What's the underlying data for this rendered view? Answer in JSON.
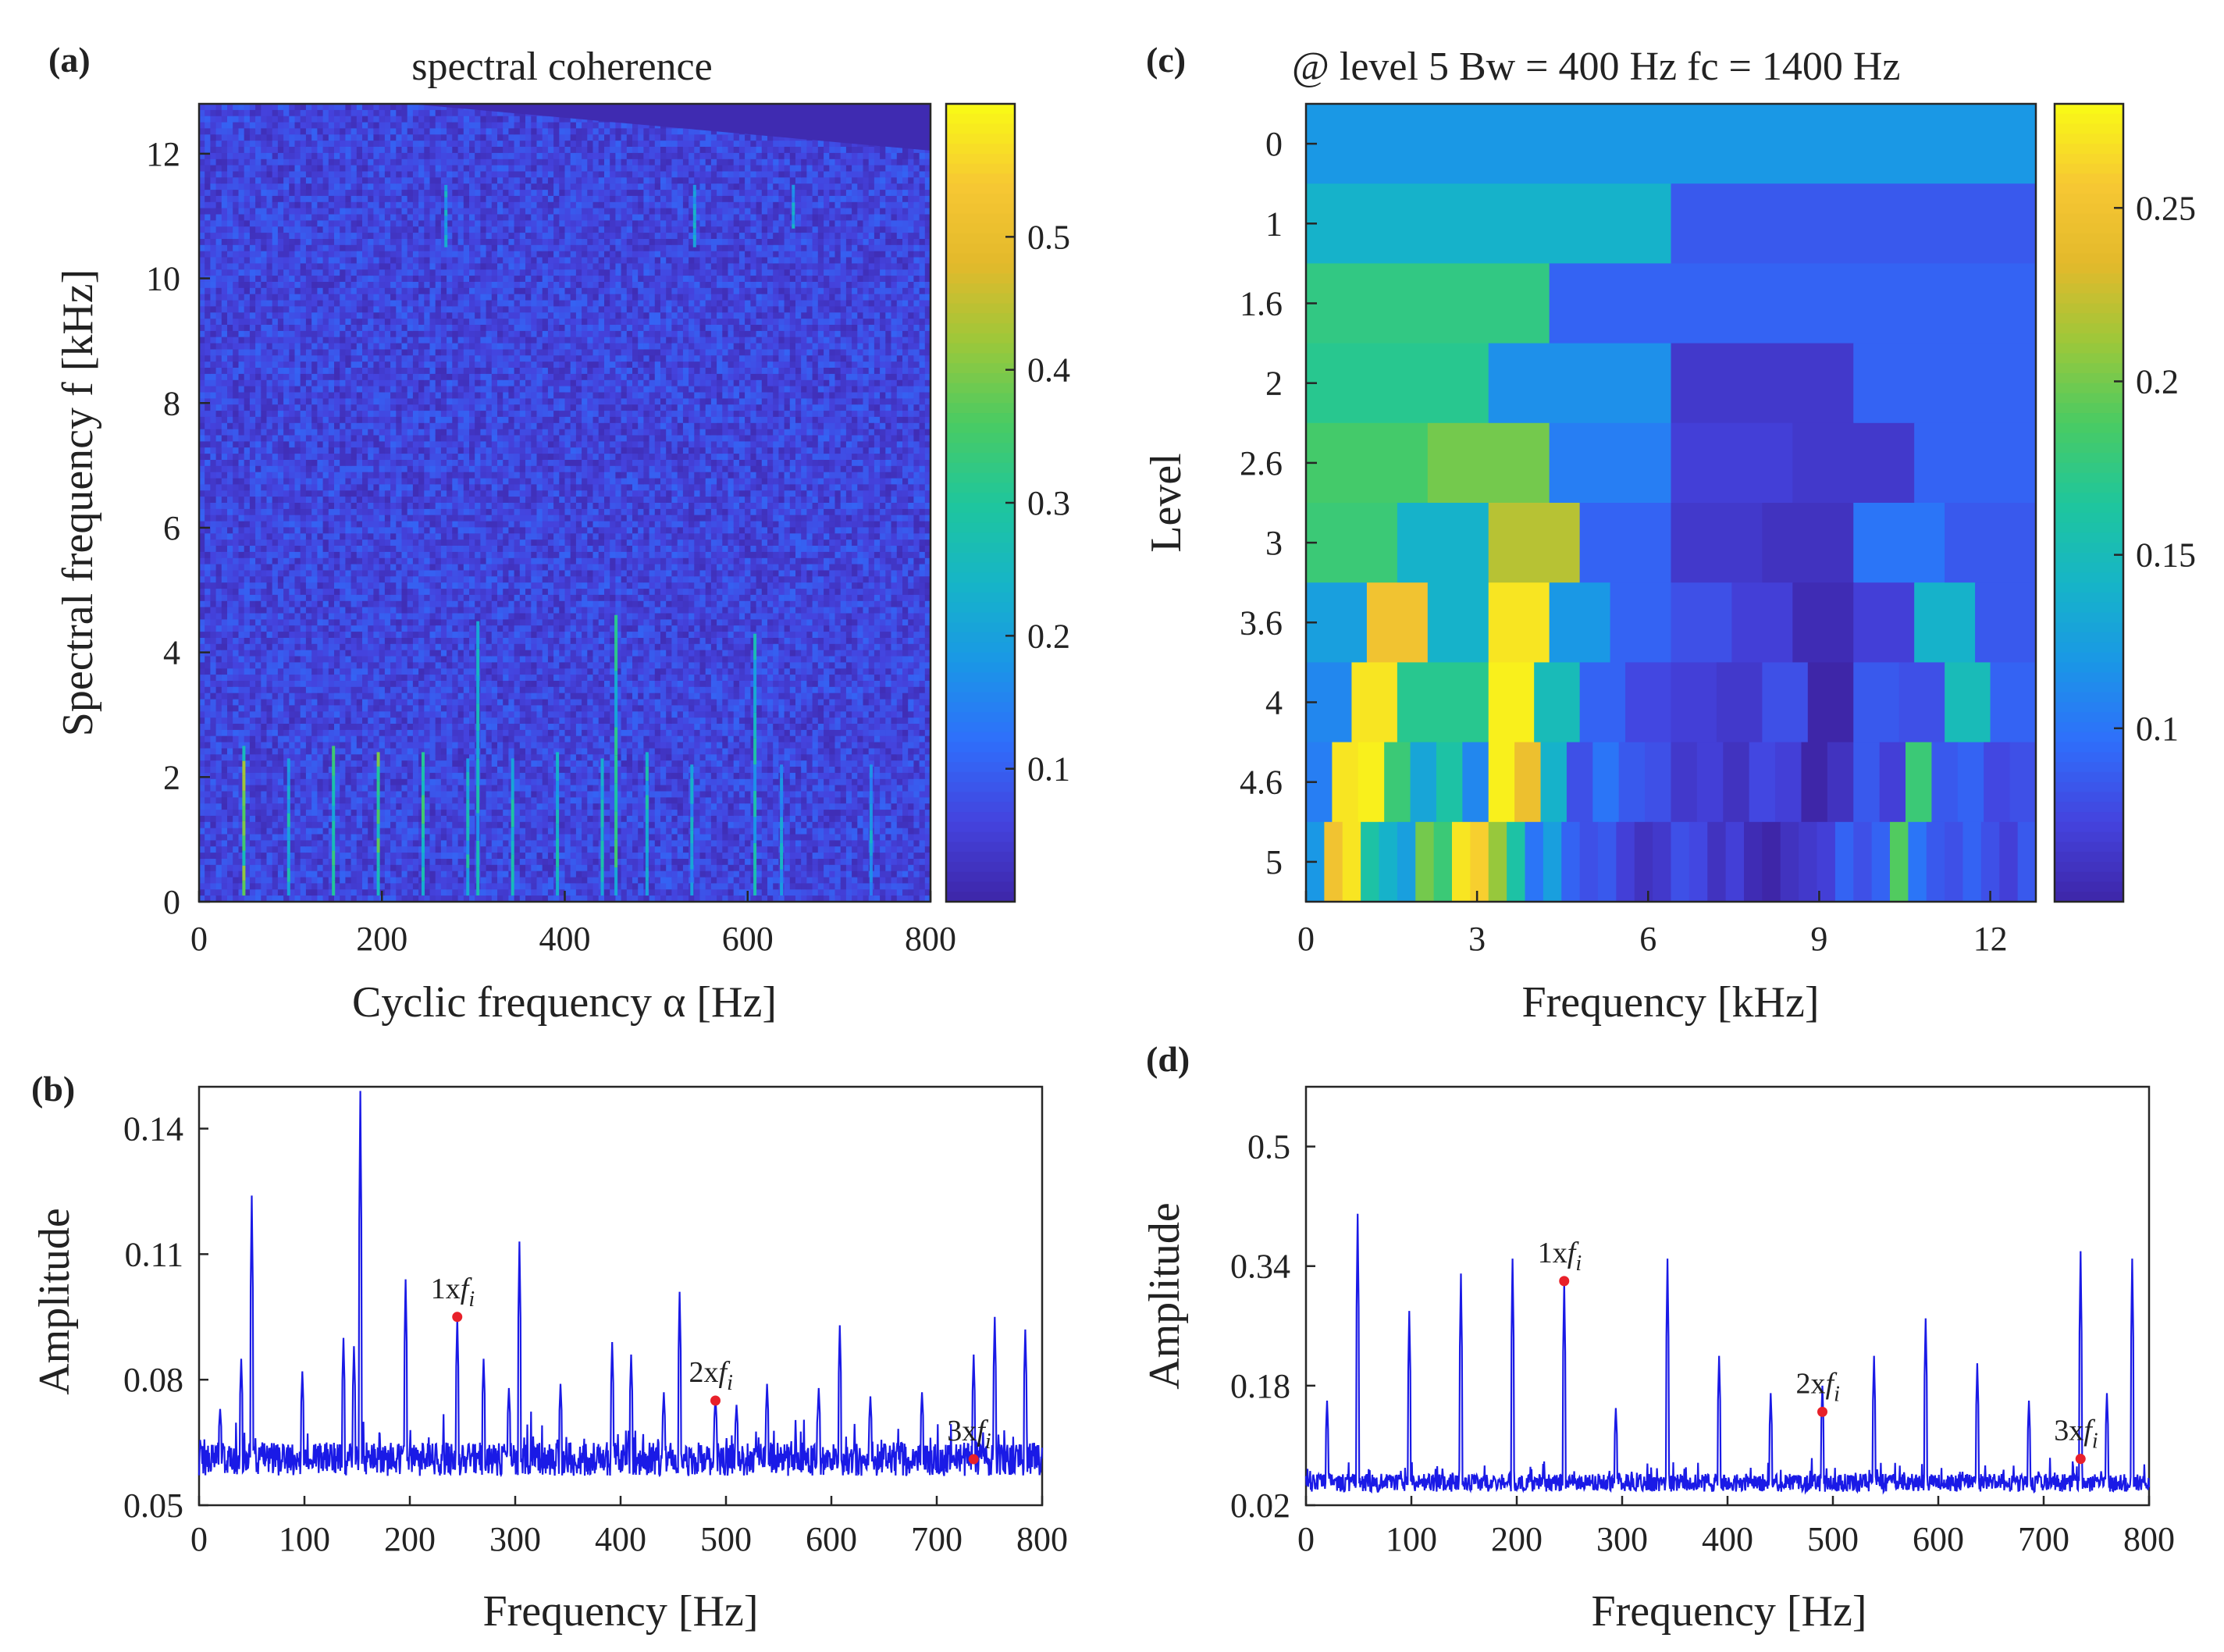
{
  "figure": {
    "panels": {
      "a": {
        "label": "(a)"
      },
      "b": {
        "label": "(b)"
      },
      "c": {
        "label": "(c)"
      },
      "d": {
        "label": "(d)"
      }
    }
  },
  "colors": {
    "parula": [
      "#3e26a8",
      "#4443de",
      "#2f6efb",
      "#1a97e6",
      "#16b5c7",
      "#1fc69c",
      "#4acb62",
      "#9bc83a",
      "#e3b92b",
      "#f7c833",
      "#f9fb15"
    ],
    "spectrum_line": "#1a1ae6",
    "marker": "#e8202a",
    "axis": "#262626"
  },
  "chart_data": [
    {
      "id": "a",
      "type": "heatmap",
      "title": "spectral coherence",
      "xlabel": "Cyclic frequency α [Hz]",
      "ylabel": "Spectral frequency f [kHz]",
      "xlim": [
        0,
        800
      ],
      "ylim": [
        0,
        12.8
      ],
      "xticks": [
        0,
        200,
        400,
        600,
        800
      ],
      "yticks": [
        0,
        2,
        4,
        6,
        8,
        10,
        12
      ],
      "colorbar": {
        "min": 0.0,
        "max": 0.6,
        "ticks": [
          0.1,
          0.2,
          0.3,
          0.4,
          0.5
        ]
      },
      "background_level": 0.06,
      "ridges": [
        {
          "alpha": 49,
          "fmax": 2.5,
          "level": 0.45
        },
        {
          "alpha": 98,
          "fmax": 2.3,
          "level": 0.3
        },
        {
          "alpha": 147,
          "fmax": 2.5,
          "level": 0.35
        },
        {
          "alpha": 196,
          "fmax": 2.4,
          "level": 0.4
        },
        {
          "alpha": 245,
          "fmax": 2.4,
          "level": 0.35
        },
        {
          "alpha": 294,
          "fmax": 2.3,
          "level": 0.3
        },
        {
          "alpha": 305,
          "fmax": 4.5,
          "level": 0.3
        },
        {
          "alpha": 343,
          "fmax": 2.3,
          "level": 0.3
        },
        {
          "alpha": 392,
          "fmax": 2.4,
          "level": 0.3
        },
        {
          "alpha": 441,
          "fmax": 2.3,
          "level": 0.3
        },
        {
          "alpha": 456,
          "fmax": 4.6,
          "level": 0.35
        },
        {
          "alpha": 490,
          "fmax": 2.4,
          "level": 0.3
        },
        {
          "alpha": 539,
          "fmax": 2.2,
          "level": 0.25
        },
        {
          "alpha": 608,
          "fmax": 4.3,
          "level": 0.3
        },
        {
          "alpha": 637,
          "fmax": 2.2,
          "level": 0.25
        },
        {
          "alpha": 735,
          "fmax": 2.2,
          "level": 0.25
        },
        {
          "alpha": 270,
          "fmin": 10.5,
          "fmax": 11.5,
          "level": 0.25
        },
        {
          "alpha": 542,
          "fmin": 10.5,
          "fmax": 11.5,
          "level": 0.25
        },
        {
          "alpha": 650,
          "fmin": 10.8,
          "fmax": 11.5,
          "level": 0.25
        }
      ]
    },
    {
      "id": "b",
      "type": "line",
      "xlabel": "Frequency [Hz]",
      "ylabel": "Amplitude",
      "xlim": [
        0,
        800
      ],
      "ylim": [
        0.05,
        0.15
      ],
      "xticks": [
        0,
        100,
        200,
        300,
        400,
        500,
        600,
        700,
        800
      ],
      "yticks": [
        0.05,
        0.08,
        0.11,
        0.14
      ],
      "baseline": 0.061,
      "noise": 0.004,
      "peaks": [
        {
          "x": 20,
          "y": 0.073
        },
        {
          "x": 40,
          "y": 0.085
        },
        {
          "x": 50,
          "y": 0.124
        },
        {
          "x": 98,
          "y": 0.082
        },
        {
          "x": 137,
          "y": 0.09
        },
        {
          "x": 147,
          "y": 0.088
        },
        {
          "x": 153,
          "y": 0.149
        },
        {
          "x": 196,
          "y": 0.104
        },
        {
          "x": 245,
          "y": 0.095
        },
        {
          "x": 270,
          "y": 0.085
        },
        {
          "x": 294,
          "y": 0.078
        },
        {
          "x": 304,
          "y": 0.113
        },
        {
          "x": 343,
          "y": 0.079
        },
        {
          "x": 392,
          "y": 0.089
        },
        {
          "x": 410,
          "y": 0.086
        },
        {
          "x": 441,
          "y": 0.077
        },
        {
          "x": 456,
          "y": 0.101
        },
        {
          "x": 490,
          "y": 0.076
        },
        {
          "x": 510,
          "y": 0.074
        },
        {
          "x": 539,
          "y": 0.079
        },
        {
          "x": 588,
          "y": 0.078
        },
        {
          "x": 608,
          "y": 0.093
        },
        {
          "x": 637,
          "y": 0.076
        },
        {
          "x": 686,
          "y": 0.077
        },
        {
          "x": 735,
          "y": 0.086
        },
        {
          "x": 755,
          "y": 0.095
        },
        {
          "x": 784,
          "y": 0.092
        }
      ],
      "markers": [
        {
          "x": 245,
          "y": 0.095,
          "label": "1x",
          "sub": "i"
        },
        {
          "x": 490,
          "y": 0.075,
          "label": "2x",
          "sub": "i"
        },
        {
          "x": 735,
          "y": 0.061,
          "label": "3x",
          "sub": "i"
        }
      ],
      "marker_symbol": "f"
    },
    {
      "id": "c",
      "type": "heatmap",
      "title": "@ level 5  Bw = 400 Hz   fc = 1400 Hz",
      "xlabel": "Frequency [kHz]",
      "ylabel": "Level",
      "xlim": [
        0,
        12.8
      ],
      "xticks": [
        0,
        3,
        6,
        9,
        12
      ],
      "levels": [
        "0",
        "1",
        "1.6",
        "2",
        "2.6",
        "3",
        "3.6",
        "4",
        "4.6",
        "5"
      ],
      "colorbar": {
        "min": 0.05,
        "max": 0.28,
        "ticks": [
          0.1,
          0.15,
          0.2,
          0.25
        ]
      },
      "rows": [
        [
          0.12
        ],
        [
          0.14,
          0.085
        ],
        [
          0.175,
          0.09,
          0.09
        ],
        [
          0.17,
          0.115,
          0.065,
          0.09
        ],
        [
          0.185,
          0.2,
          0.105,
          0.07,
          0.065,
          0.09
        ],
        [
          0.18,
          0.14,
          0.22,
          0.09,
          0.065,
          0.06,
          0.1,
          0.085
        ],
        [
          0.125,
          0.25,
          0.14,
          0.27,
          0.12,
          0.09,
          0.08,
          0.07,
          0.055,
          0.07,
          0.14,
          0.085
        ],
        [
          0.11,
          0.27,
          0.17,
          0.17,
          0.275,
          0.15,
          0.09,
          0.075,
          0.07,
          0.065,
          0.08,
          0.05,
          0.085,
          0.08,
          0.15,
          0.09
        ],
        [
          0.105,
          0.27,
          0.275,
          0.18,
          0.13,
          0.16,
          0.11,
          0.275,
          0.245,
          0.14,
          0.08,
          0.1,
          0.085,
          0.08,
          0.065,
          0.07,
          0.06,
          0.075,
          0.07,
          0.05,
          0.06,
          0.085,
          0.07,
          0.18,
          0.085,
          0.09,
          0.075,
          0.08
        ],
        [
          0.12,
          0.25,
          0.27,
          0.16,
          0.14,
          0.125,
          0.2,
          0.18,
          0.27,
          0.26,
          0.21,
          0.16,
          0.1,
          0.125,
          0.09,
          0.08,
          0.085,
          0.07,
          0.06,
          0.065,
          0.08,
          0.075,
          0.06,
          0.07,
          0.055,
          0.05,
          0.06,
          0.065,
          0.07,
          0.09,
          0.08,
          0.09,
          0.19,
          0.1,
          0.085,
          0.08,
          0.09,
          0.08,
          0.07,
          0.085
        ]
      ]
    },
    {
      "id": "d",
      "type": "line",
      "xlabel": "Frequency [Hz]",
      "ylabel": "Amplitude",
      "xlim": [
        0,
        800
      ],
      "ylim": [
        0.02,
        0.58
      ],
      "xticks": [
        0,
        100,
        200,
        300,
        400,
        500,
        600,
        700,
        800
      ],
      "yticks": [
        0.02,
        0.18,
        0.34,
        0.5
      ],
      "baseline": 0.05,
      "noise": 0.012,
      "peaks": [
        {
          "x": 20,
          "y": 0.16
        },
        {
          "x": 49,
          "y": 0.41
        },
        {
          "x": 98,
          "y": 0.28
        },
        {
          "x": 147,
          "y": 0.33
        },
        {
          "x": 196,
          "y": 0.35
        },
        {
          "x": 245,
          "y": 0.32
        },
        {
          "x": 294,
          "y": 0.15
        },
        {
          "x": 343,
          "y": 0.35
        },
        {
          "x": 392,
          "y": 0.22
        },
        {
          "x": 441,
          "y": 0.17
        },
        {
          "x": 490,
          "y": 0.18
        },
        {
          "x": 539,
          "y": 0.22
        },
        {
          "x": 588,
          "y": 0.27
        },
        {
          "x": 637,
          "y": 0.21
        },
        {
          "x": 686,
          "y": 0.16
        },
        {
          "x": 735,
          "y": 0.36
        },
        {
          "x": 760,
          "y": 0.17
        },
        {
          "x": 784,
          "y": 0.35
        }
      ],
      "markers": [
        {
          "x": 245,
          "y": 0.32,
          "label": "1x",
          "sub": "i"
        },
        {
          "x": 490,
          "y": 0.145,
          "label": "2x",
          "sub": "i"
        },
        {
          "x": 735,
          "y": 0.082,
          "label": "3x",
          "sub": "i"
        }
      ],
      "marker_symbol": "f"
    }
  ]
}
